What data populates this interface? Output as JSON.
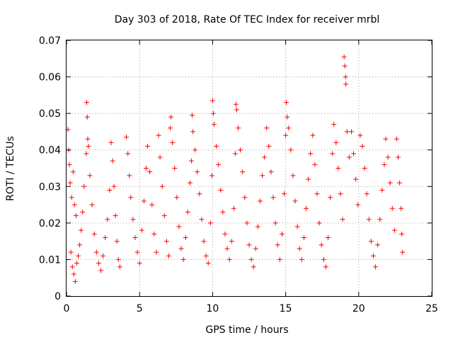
{
  "chart_data": {
    "type": "scatter",
    "title": "Day 303 of 2018, Rate Of TEC Index for receiver mrbl",
    "xlabel": "GPS time / hours",
    "ylabel": "ROTI / TECUs",
    "xlim": [
      0,
      25
    ],
    "ylim": [
      0,
      0.07
    ],
    "xticks": [
      "0",
      "5",
      "10",
      "15",
      "20",
      "25"
    ],
    "yticks": [
      "0",
      "0.01",
      "0.02",
      "0.03",
      "0.04",
      "0.05",
      "0.06",
      "0.07"
    ],
    "grid": true,
    "marker": "plus",
    "color": "#ff0000",
    "series": [
      {
        "points": [
          [
            0.1,
            0.0456
          ],
          [
            0.15,
            0.04
          ],
          [
            0.2,
            0.036
          ],
          [
            0.25,
            0.031
          ],
          [
            0.35,
            0.027
          ],
          [
            0.45,
            0.034
          ],
          [
            0.55,
            0.025
          ],
          [
            0.65,
            0.022
          ],
          [
            0.3,
            0.012
          ],
          [
            0.4,
            0.008
          ],
          [
            0.5,
            0.006
          ],
          [
            0.6,
            0.004
          ],
          [
            0.7,
            0.009
          ],
          [
            0.8,
            0.011
          ],
          [
            0.9,
            0.014
          ],
          [
            1.0,
            0.018
          ],
          [
            1.1,
            0.023
          ],
          [
            1.2,
            0.03
          ],
          [
            1.35,
            0.039
          ],
          [
            1.38,
            0.053
          ],
          [
            1.42,
            0.049
          ],
          [
            1.45,
            0.043
          ],
          [
            1.5,
            0.041
          ],
          [
            1.6,
            0.033
          ],
          [
            1.75,
            0.025
          ],
          [
            1.9,
            0.017
          ],
          [
            2.05,
            0.012
          ],
          [
            2.2,
            0.009
          ],
          [
            2.35,
            0.007
          ],
          [
            2.5,
            0.011
          ],
          [
            2.65,
            0.016
          ],
          [
            2.8,
            0.021
          ],
          [
            2.95,
            0.029
          ],
          [
            3.05,
            0.042
          ],
          [
            3.15,
            0.037
          ],
          [
            3.25,
            0.03
          ],
          [
            3.35,
            0.022
          ],
          [
            3.45,
            0.015
          ],
          [
            3.55,
            0.01
          ],
          [
            3.65,
            0.008
          ],
          [
            4.1,
            0.0435
          ],
          [
            4.2,
            0.039
          ],
          [
            4.3,
            0.033
          ],
          [
            4.4,
            0.027
          ],
          [
            4.55,
            0.021
          ],
          [
            4.7,
            0.016
          ],
          [
            4.85,
            0.012
          ],
          [
            5.0,
            0.009
          ],
          [
            5.15,
            0.018
          ],
          [
            5.3,
            0.026
          ],
          [
            5.45,
            0.035
          ],
          [
            5.55,
            0.041
          ],
          [
            5.7,
            0.034
          ],
          [
            5.85,
            0.025
          ],
          [
            6.0,
            0.017
          ],
          [
            6.15,
            0.012
          ],
          [
            6.3,
            0.044
          ],
          [
            6.4,
            0.038
          ],
          [
            6.55,
            0.03
          ],
          [
            6.7,
            0.022
          ],
          [
            6.85,
            0.015
          ],
          [
            7.0,
            0.011
          ],
          [
            7.1,
            0.046
          ],
          [
            7.15,
            0.049
          ],
          [
            7.25,
            0.042
          ],
          [
            7.4,
            0.035
          ],
          [
            7.55,
            0.027
          ],
          [
            7.7,
            0.019
          ],
          [
            7.85,
            0.013
          ],
          [
            8.0,
            0.01
          ],
          [
            8.15,
            0.016
          ],
          [
            8.3,
            0.023
          ],
          [
            8.45,
            0.031
          ],
          [
            8.55,
            0.037
          ],
          [
            8.6,
            0.0495
          ],
          [
            8.65,
            0.045
          ],
          [
            8.8,
            0.04
          ],
          [
            8.95,
            0.034
          ],
          [
            9.1,
            0.028
          ],
          [
            9.25,
            0.021
          ],
          [
            9.4,
            0.015
          ],
          [
            9.55,
            0.011
          ],
          [
            9.7,
            0.009
          ],
          [
            9.85,
            0.02
          ],
          [
            9.95,
            0.033
          ],
          [
            10.0,
            0.0535
          ],
          [
            10.05,
            0.05
          ],
          [
            10.1,
            0.047
          ],
          [
            10.25,
            0.041
          ],
          [
            10.4,
            0.036
          ],
          [
            10.55,
            0.029
          ],
          [
            10.7,
            0.023
          ],
          [
            10.85,
            0.017
          ],
          [
            11.0,
            0.013
          ],
          [
            11.15,
            0.01
          ],
          [
            11.3,
            0.015
          ],
          [
            11.45,
            0.024
          ],
          [
            11.55,
            0.039
          ],
          [
            11.6,
            0.0525
          ],
          [
            11.65,
            0.051
          ],
          [
            11.75,
            0.046
          ],
          [
            11.9,
            0.04
          ],
          [
            12.05,
            0.034
          ],
          [
            12.2,
            0.027
          ],
          [
            12.35,
            0.02
          ],
          [
            12.5,
            0.014
          ],
          [
            12.65,
            0.01
          ],
          [
            12.8,
            0.008
          ],
          [
            12.95,
            0.013
          ],
          [
            13.1,
            0.019
          ],
          [
            13.25,
            0.026
          ],
          [
            13.4,
            0.033
          ],
          [
            13.55,
            0.038
          ],
          [
            13.7,
            0.046
          ],
          [
            13.85,
            0.041
          ],
          [
            14.0,
            0.034
          ],
          [
            14.15,
            0.027
          ],
          [
            14.3,
            0.02
          ],
          [
            14.45,
            0.014
          ],
          [
            14.6,
            0.01
          ],
          [
            14.75,
            0.017
          ],
          [
            14.9,
            0.028
          ],
          [
            15.0,
            0.044
          ],
          [
            15.05,
            0.053
          ],
          [
            15.1,
            0.049
          ],
          [
            15.2,
            0.046
          ],
          [
            15.35,
            0.04
          ],
          [
            15.5,
            0.033
          ],
          [
            15.65,
            0.026
          ],
          [
            15.8,
            0.019
          ],
          [
            15.95,
            0.013
          ],
          [
            16.1,
            0.01
          ],
          [
            16.25,
            0.016
          ],
          [
            16.4,
            0.024
          ],
          [
            16.55,
            0.032
          ],
          [
            16.7,
            0.039
          ],
          [
            16.85,
            0.044
          ],
          [
            17.0,
            0.036
          ],
          [
            17.15,
            0.028
          ],
          [
            17.3,
            0.02
          ],
          [
            17.45,
            0.014
          ],
          [
            17.6,
            0.01
          ],
          [
            17.75,
            0.008
          ],
          [
            17.9,
            0.016
          ],
          [
            18.05,
            0.027
          ],
          [
            18.2,
            0.039
          ],
          [
            18.3,
            0.047
          ],
          [
            18.45,
            0.042
          ],
          [
            18.6,
            0.035
          ],
          [
            18.75,
            0.028
          ],
          [
            18.9,
            0.021
          ],
          [
            19.0,
            0.0655
          ],
          [
            19.05,
            0.063
          ],
          [
            19.1,
            0.06
          ],
          [
            19.12,
            0.058
          ],
          [
            19.2,
            0.045
          ],
          [
            19.35,
            0.038
          ],
          [
            19.5,
            0.045
          ],
          [
            19.65,
            0.039
          ],
          [
            19.8,
            0.032
          ],
          [
            19.95,
            0.025
          ],
          [
            20.1,
            0.044
          ],
          [
            20.25,
            0.041
          ],
          [
            20.4,
            0.035
          ],
          [
            20.55,
            0.028
          ],
          [
            20.7,
            0.021
          ],
          [
            20.85,
            0.015
          ],
          [
            21.0,
            0.011
          ],
          [
            21.15,
            0.008
          ],
          [
            21.3,
            0.014
          ],
          [
            21.45,
            0.021
          ],
          [
            21.6,
            0.029
          ],
          [
            21.75,
            0.036
          ],
          [
            21.85,
            0.043
          ],
          [
            22.0,
            0.038
          ],
          [
            22.15,
            0.031
          ],
          [
            22.3,
            0.024
          ],
          [
            22.45,
            0.018
          ],
          [
            22.6,
            0.043
          ],
          [
            22.7,
            0.038
          ],
          [
            22.8,
            0.031
          ],
          [
            22.9,
            0.024
          ],
          [
            22.95,
            0.017
          ],
          [
            23.0,
            0.012
          ]
        ]
      }
    ]
  }
}
